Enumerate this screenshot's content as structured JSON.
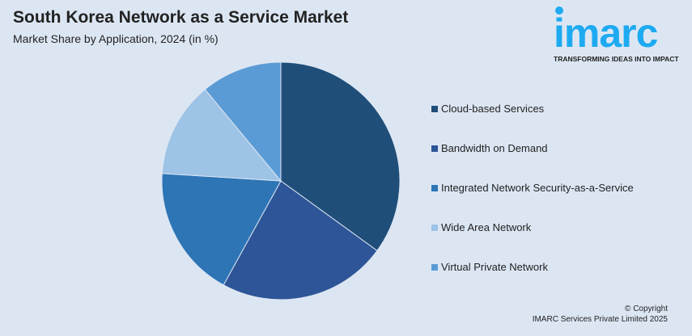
{
  "header": {
    "title": "South Korea Network as a Service Market",
    "subtitle": "Market Share by Application, 2024 (in %)"
  },
  "logo": {
    "word": "imarc",
    "tagline": "TRANSFORMING IDEAS INTO IMPACT",
    "color": "#1eaaf1"
  },
  "chart_data": {
    "type": "pie",
    "title": "South Korea Network as a Service Market",
    "subtitle": "Market Share by Application, 2024 (in %)",
    "categories": [
      "Cloud-based Services",
      "Bandwidth on Demand",
      "Integrated Network Security-as-a-Service",
      "Wide Area Network",
      "Virtual Private Network"
    ],
    "values": [
      35,
      23,
      18,
      13,
      11
    ],
    "colors": [
      "#1f4e79",
      "#2e5597",
      "#2e75b6",
      "#9dc3e6",
      "#5b9bd5"
    ],
    "legend_position": "right"
  },
  "footer": {
    "copyright": "© Copyright",
    "company": "IMARC Services Private Limited 2025"
  }
}
